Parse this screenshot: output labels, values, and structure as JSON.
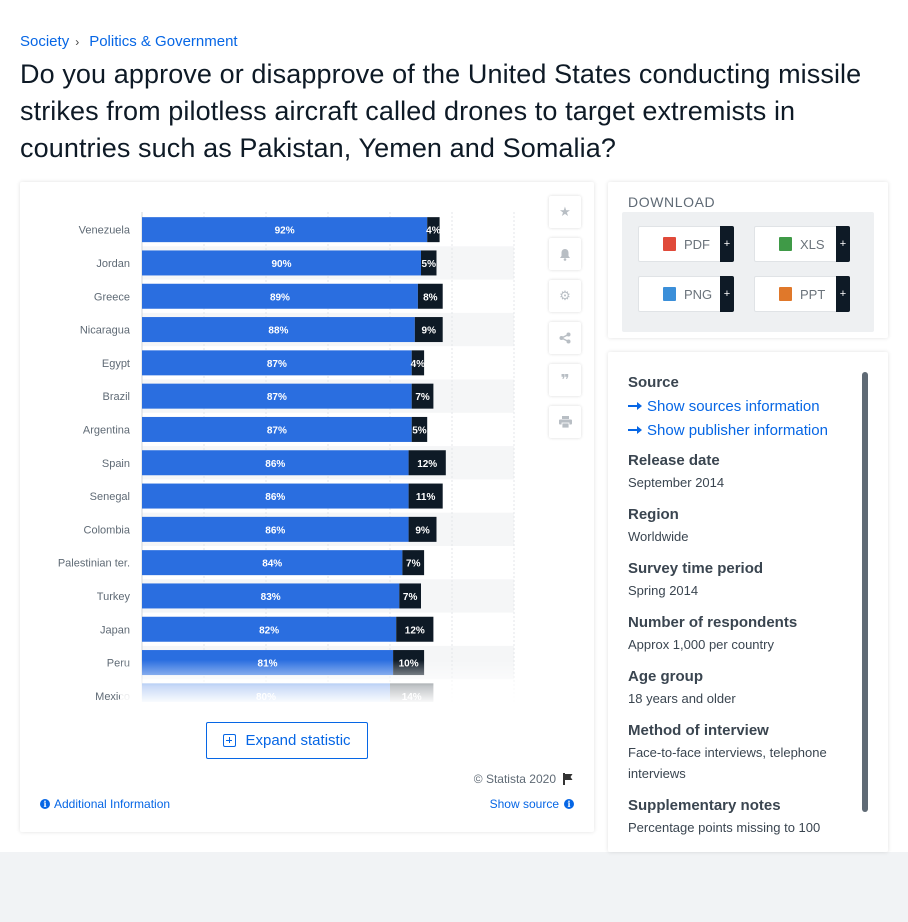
{
  "breadcrumb": {
    "items": [
      "Society",
      "Politics & Government"
    ],
    "separator": "›"
  },
  "title": "Do you approve or disapprove of the United States conducting missile strikes from pilotless aircraft called drones to target extremists in countries such as Pakistan, Yemen and Somalia?",
  "chart_data": {
    "type": "bar",
    "orientation": "horizontal",
    "stacked": true,
    "categories": [
      "Venezuela",
      "Jordan",
      "Greece",
      "Nicaragua",
      "Egypt",
      "Brazil",
      "Argentina",
      "Spain",
      "Senegal",
      "Colombia",
      "Palestinian ter.",
      "Turkey",
      "Japan",
      "Peru",
      "Mexico"
    ],
    "series": [
      {
        "values": [
          92,
          90,
          89,
          88,
          87,
          87,
          87,
          86,
          86,
          86,
          84,
          83,
          82,
          81,
          80
        ],
        "color": "#2a6ee0"
      },
      {
        "values": [
          4,
          5,
          8,
          9,
          4,
          7,
          5,
          12,
          11,
          9,
          7,
          7,
          12,
          10,
          14
        ],
        "color": "#0e1a26"
      }
    ],
    "xlim": [
      0,
      120
    ],
    "grid": true,
    "legend": "none"
  },
  "toolbar": {
    "icons": [
      "star-icon",
      "bell-icon",
      "gear-icon",
      "share-icon",
      "quote-icon",
      "print-icon"
    ]
  },
  "chart_footer": {
    "expand_label": "Expand statistic",
    "copyright": "© Statista 2020",
    "additional_info": "Additional Information",
    "show_source": "Show source"
  },
  "download": {
    "title": "DOWNLOAD",
    "buttons": [
      {
        "label": "PDF",
        "color": "#e04a3a"
      },
      {
        "label": "XLS",
        "color": "#3f9a47"
      },
      {
        "label": "PNG",
        "color": "#3b8fd9"
      },
      {
        "label": "PPT",
        "color": "#e0782a"
      }
    ]
  },
  "info": {
    "source_label": "Source",
    "show_sources": "Show sources information",
    "show_publisher": "Show publisher information",
    "release_label": "Release date",
    "release_value": "September 2014",
    "region_label": "Region",
    "region_value": "Worldwide",
    "survey_label": "Survey time period",
    "survey_value": "Spring 2014",
    "respondents_label": "Number of respondents",
    "respondents_value": "Approx 1,000 per country",
    "age_label": "Age group",
    "age_value": "18 years and older",
    "method_label": "Method of interview",
    "method_value": "Face-to-face interviews, telephone interviews",
    "notes_label": "Supplementary notes",
    "notes_value": "Percentage points missing to 100"
  }
}
